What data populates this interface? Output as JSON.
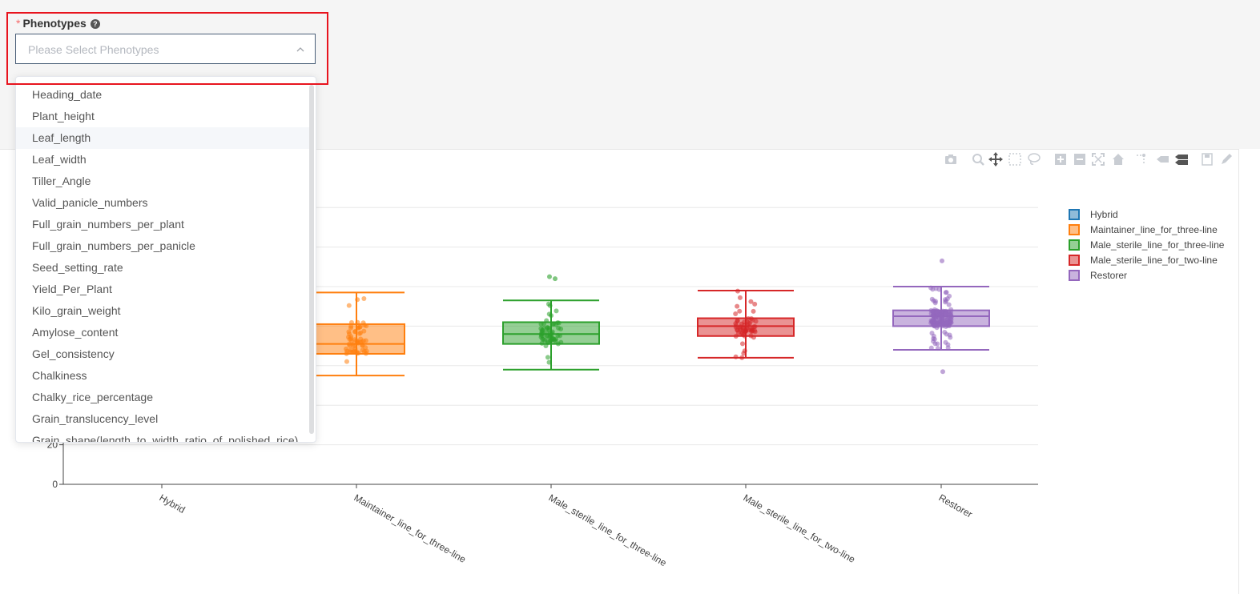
{
  "form": {
    "required_mark": "*",
    "label": "Phenotypes",
    "help_icon": "question-circle-icon",
    "placeholder": "Please Select Phenotypes",
    "chevron_icon": "chevron-up-icon"
  },
  "dropdown": {
    "hovered_item": "Leaf_length",
    "options": [
      "Heading_date",
      "Plant_height",
      "Leaf_length",
      "Leaf_width",
      "Tiller_Angle",
      "Valid_panicle_numbers",
      "Full_grain_numbers_per_plant",
      "Full_grain_numbers_per_panicle",
      "Seed_setting_rate",
      "Yield_Per_Plant",
      "Kilo_grain_weight",
      "Amylose_content",
      "Gel_consistency",
      "Chalkiness",
      "Chalky_rice_percentage",
      "Grain_translucency_level",
      "Grain_shape(length_to_width_ratio_of_polished_rice)"
    ]
  },
  "toolbar": {
    "icons": [
      "camera-icon",
      "zoom-icon",
      "pan-icon",
      "box-select-icon",
      "lasso-select-icon",
      "zoom-in-icon",
      "zoom-out-icon",
      "autoscale-icon",
      "reset-axes-icon",
      "spike-lines-icon",
      "hover-closest-icon",
      "hover-compare-icon",
      "save-icon",
      "edit-icon"
    ]
  },
  "chart_data": {
    "type": "box",
    "categories": [
      "Hybrid",
      "Maintainer_line_for_three-line",
      "Male_sterile_line_for_three-line",
      "Male_sterile_line_for_two-line",
      "Restorer"
    ],
    "y_ticks_visible": [
      0,
      20
    ],
    "ylim": [
      0,
      140
    ],
    "grid": true,
    "legend_position": "top-right",
    "series": [
      {
        "name": "Hybrid",
        "color": "#1f77b4",
        "visible_box": false
      },
      {
        "name": "Maintainer_line_for_three-line",
        "color": "#ff7f0e",
        "whisker_low": 55,
        "q1": 66,
        "median": 71,
        "q3": 81,
        "whisker_high": 97
      },
      {
        "name": "Male_sterile_line_for_three-line",
        "color": "#2ca02c",
        "whisker_low": 58,
        "q1": 71,
        "median": 76,
        "q3": 82,
        "whisker_high": 93
      },
      {
        "name": "Male_sterile_line_for_two-line",
        "color": "#d62728",
        "whisker_low": 64,
        "q1": 75,
        "median": 80,
        "q3": 84,
        "whisker_high": 98
      },
      {
        "name": "Restorer",
        "color": "#9467bd",
        "whisker_low": 68,
        "q1": 80,
        "median": 85,
        "q3": 88,
        "whisker_high": 100
      }
    ]
  }
}
